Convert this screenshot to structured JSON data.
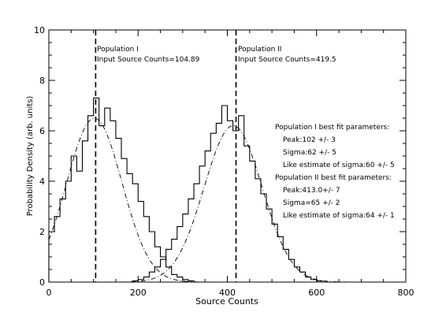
{
  "chart_data": {
    "type": "line",
    "title": "",
    "xlabel": "Source Counts",
    "ylabel": "Probability Density (arb. units)",
    "xlim": [
      0,
      800
    ],
    "ylim": [
      0,
      10
    ],
    "x_ticks": [
      0,
      200,
      400,
      600,
      800
    ],
    "y_ticks": [
      0,
      2,
      4,
      6,
      8,
      10
    ],
    "grid": false,
    "legend": "none",
    "vlines": [
      {
        "x": 104.89,
        "label_line1": "Population I",
        "label_line2": "Input Source Counts=104.89"
      },
      {
        "x": 419.5,
        "label_line1": "Population II",
        "label_line2": "Input Source Counts=419.5"
      }
    ],
    "fit_text": [
      "Population I best fit parameters:",
      "Peak:102 +/- 3",
      "Sigma:62 +/- 5",
      "Like estimate of sigma:60 +/- 5",
      "Population II best fit parameters:",
      "Peak:413.0+/- 7",
      "Sigma=65 +/- 2",
      "Like estimate of sigma:64 +/- 1"
    ],
    "bin_width": 12.5,
    "series": [
      {
        "style": "histogram",
        "x_start": 0,
        "values": [
          2.0,
          2.6,
          3.3,
          4.0,
          5.0,
          4.4,
          5.6,
          6.6,
          7.3,
          6.2,
          6.9,
          6.4,
          5.7,
          4.9,
          4.3,
          3.9,
          3.2,
          2.6,
          2.0,
          1.4,
          1.0,
          0.6,
          0.3,
          0.2,
          0.1,
          0.05,
          0.0,
          0.0,
          0.0,
          0.0,
          0.0,
          0.0,
          0.0,
          0.0,
          0.0,
          0.0,
          0.0,
          0.0,
          0.0,
          0.0,
          0.0,
          0.0,
          0.0,
          0.0,
          0.0,
          0.0,
          0.0,
          0.0,
          0.0,
          0.0
        ]
      },
      {
        "style": "histogram",
        "x_start": 0,
        "values": [
          0.0,
          0.0,
          0.0,
          0.0,
          0.0,
          0.0,
          0.0,
          0.0,
          0.0,
          0.0,
          0.0,
          0.0,
          0.0,
          0.0,
          0.0,
          0.05,
          0.1,
          0.2,
          0.4,
          0.6,
          0.9,
          1.3,
          1.7,
          2.2,
          2.7,
          3.3,
          3.9,
          4.6,
          5.2,
          5.9,
          6.3,
          7.0,
          6.4,
          6.0,
          6.6,
          5.4,
          4.8,
          4.1,
          3.5,
          2.9,
          2.3,
          1.8,
          1.3,
          0.9,
          0.6,
          0.4,
          0.2,
          0.1,
          0.05,
          0.0
        ]
      },
      {
        "style": "dashdot",
        "kind": "gaussian",
        "peak": 102,
        "sigma": 62,
        "amplitude": 6.5
      },
      {
        "style": "dashdot",
        "kind": "gaussian",
        "peak": 413,
        "sigma": 65,
        "amplitude": 6.2
      }
    ]
  }
}
